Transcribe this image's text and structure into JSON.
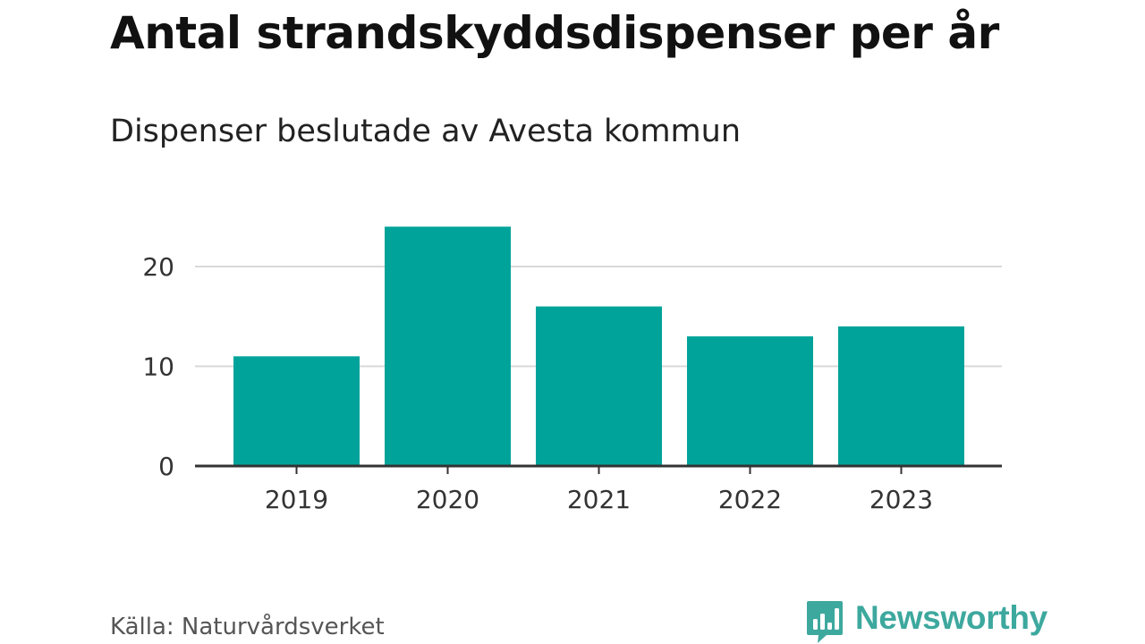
{
  "header": {
    "title": "Antal strandskyddsdispenser per år",
    "subtitle": "Dispenser beslutade av Avesta kommun"
  },
  "footer": {
    "source": "Källa: Naturvårdsverket",
    "logo_text": "Newsworthy",
    "logo_icon": "bar-chart-speech-bubble-icon"
  },
  "colors": {
    "bar": "#00a39a",
    "logo": "#3da89e",
    "grid": "#d9d9d9",
    "axis": "#333333",
    "tick_label": "#333333"
  },
  "chart_data": {
    "type": "bar",
    "categories": [
      "2019",
      "2020",
      "2021",
      "2022",
      "2023"
    ],
    "values": [
      11,
      24,
      16,
      13,
      14
    ],
    "title": "Antal strandskyddsdispenser per år",
    "subtitle": "Dispenser beslutade av Avesta kommun",
    "xlabel": "",
    "ylabel": "",
    "ylim": [
      0,
      24
    ],
    "yticks": [
      0,
      10,
      20
    ],
    "grid": "horizontal",
    "legend": "none"
  }
}
